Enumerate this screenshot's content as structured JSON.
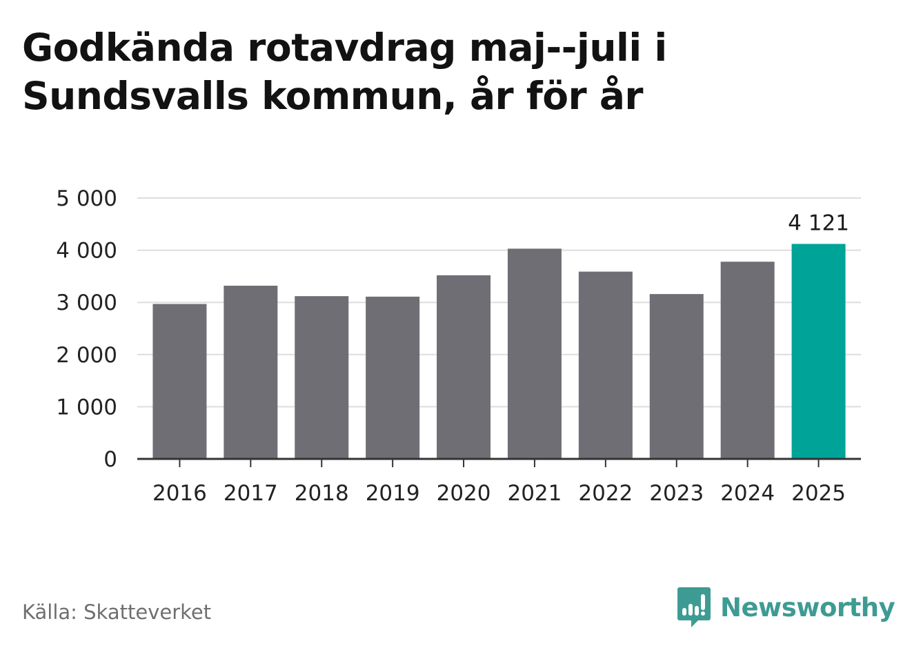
{
  "title_lines": [
    "Godkända rotavdrag maj--juli i",
    "Sundsvalls kommun, år för år"
  ],
  "source": "Källa: Skatteverket",
  "brand": {
    "name": "Newsworthy",
    "logo_icon": "newsworthy-logo-icon"
  },
  "colors": {
    "bar": "#6f6e74",
    "highlight": "#00a398",
    "grid": "#dddddd",
    "axis": "#333333",
    "text": "#222222",
    "brand": "#3e9b93"
  },
  "chart_data": {
    "type": "bar",
    "title": "Godkända rotavdrag maj--juli i Sundsvalls kommun, år för år",
    "categories": [
      "2016",
      "2017",
      "2018",
      "2019",
      "2020",
      "2021",
      "2022",
      "2023",
      "2024",
      "2025"
    ],
    "values": [
      2970,
      3320,
      3120,
      3110,
      3520,
      4030,
      3590,
      3160,
      3780,
      4121
    ],
    "highlight_index": 9,
    "data_labels": [
      {
        "index": 9,
        "text": "4 121"
      }
    ],
    "yticks": [
      0,
      1000,
      2000,
      3000,
      4000,
      5000
    ],
    "ytick_labels": [
      "0",
      "1 000",
      "2 000",
      "3 000",
      "4 000",
      "5 000"
    ],
    "ylim": [
      0,
      5000
    ],
    "grid": true,
    "xlabel": "",
    "ylabel": ""
  }
}
